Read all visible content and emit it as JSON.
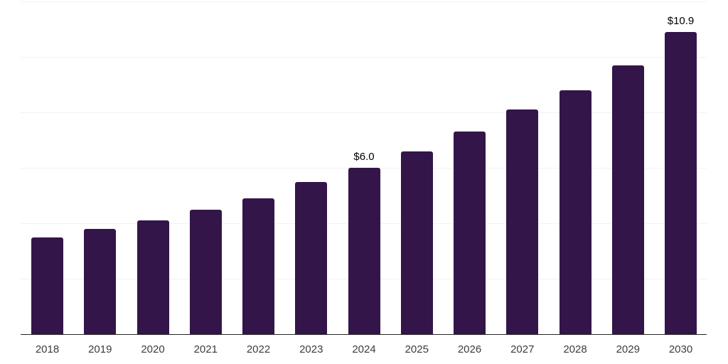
{
  "chart_data": {
    "type": "bar",
    "title": "",
    "xlabel": "",
    "ylabel": "",
    "categories": [
      "2018",
      "2019",
      "2020",
      "2021",
      "2022",
      "2023",
      "2024",
      "2025",
      "2026",
      "2027",
      "2028",
      "2029",
      "2030"
    ],
    "values": [
      3.5,
      3.8,
      4.1,
      4.5,
      4.9,
      5.5,
      6.0,
      6.6,
      7.3,
      8.1,
      8.8,
      9.7,
      10.9
    ],
    "data_labels": [
      {
        "category": "2024",
        "text": "$6.0"
      },
      {
        "category": "2030",
        "text": "$10.9"
      }
    ],
    "ylim": [
      0,
      12
    ],
    "gridline_step": 2,
    "grid": true,
    "legend": "none",
    "colors": {
      "bar": "#33154a",
      "axis_line": "#262626",
      "gridline": "#f2f2f2",
      "data_label": "#000000",
      "tick_label": "#3c3c3c",
      "background": "#ffffff"
    }
  }
}
